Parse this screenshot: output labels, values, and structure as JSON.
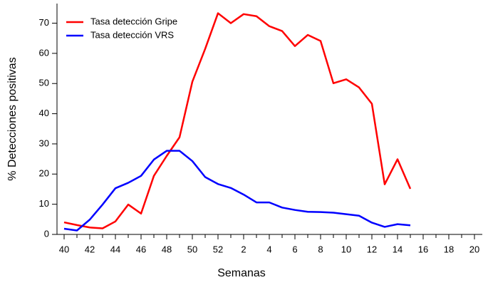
{
  "chart_data": {
    "type": "line",
    "x_label": "Semanas",
    "y_label": "% Detecciones positivas",
    "categories": [
      "40",
      null,
      "42",
      null,
      "44",
      null,
      "46",
      null,
      "48",
      null,
      "50",
      null,
      "52",
      null,
      "2",
      null,
      "4",
      null,
      "6",
      null,
      "8",
      null,
      "10",
      null,
      "12",
      null,
      "14",
      null,
      "16",
      null,
      "18",
      null,
      "20"
    ],
    "series": [
      {
        "name": "Tasa detección Gripe",
        "color": "#ff0000",
        "values": [
          4.0,
          3.1,
          2.3,
          2.0,
          4.3,
          9.9,
          6.9,
          19.4,
          26.0,
          32.2,
          50.6,
          61.5,
          73.3,
          70.0,
          73.0,
          72.3,
          69.0,
          67.4,
          62.4,
          66.1,
          64.1,
          50.1,
          51.4,
          48.7,
          43.3,
          16.6,
          24.9,
          15.1,
          null,
          null,
          null,
          null,
          null
        ]
      },
      {
        "name": "Tasa detección VRS",
        "color": "#0000ff",
        "values": [
          1.9,
          1.3,
          4.9,
          9.9,
          15.3,
          17.1,
          19.4,
          24.8,
          27.7,
          27.7,
          24.3,
          19.0,
          16.7,
          15.4,
          13.2,
          10.6,
          10.6,
          8.9,
          8.1,
          7.5,
          7.4,
          7.2,
          6.7,
          6.2,
          3.9,
          2.5,
          3.4,
          3.0,
          null,
          null,
          null,
          null,
          null
        ]
      }
    ],
    "ylim": [
      0,
      76.5
    ],
    "yticks": [
      0,
      10,
      20,
      30,
      40,
      50,
      60,
      70
    ],
    "grid": false,
    "legend": "top-left"
  }
}
